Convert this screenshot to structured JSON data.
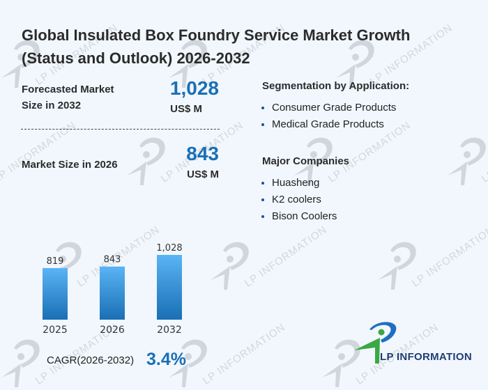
{
  "title_line1": "Global Insulated Box Foundry Service Market Growth",
  "title_line2": "(Status and Outlook) 2026-2032",
  "forecast": {
    "label_line1": "Forecasted Market",
    "label_line2": "Size in 2032",
    "value": "1,028",
    "unit": "US$ M"
  },
  "current": {
    "label": "Market Size in 2026",
    "value": "843",
    "unit": "US$ M"
  },
  "segmentation": {
    "heading": "Segmentation by Application:",
    "items": [
      "Consumer Grade Products",
      "Medical Grade Products"
    ]
  },
  "companies": {
    "heading": "Major Companies",
    "items": [
      "Huasheng",
      "K2 coolers",
      "Bison Coolers"
    ]
  },
  "cagr": {
    "label": "CAGR(2026-2032)",
    "value": "3.4%"
  },
  "logo": {
    "text": "LP INFORMATION"
  },
  "watermark_text": "LP INFORMATION",
  "colors": {
    "accent": "#1a6fb5",
    "bar_top": "#5ab4f5",
    "bar_bottom": "#1a6fb5",
    "background": "#f1f7fd"
  },
  "chart_data": {
    "type": "bar",
    "categories": [
      "2025",
      "2026",
      "2032"
    ],
    "values": [
      819,
      843,
      1028
    ],
    "labels": [
      "819",
      "843",
      "1,028"
    ],
    "title": "",
    "xlabel": "",
    "ylabel": "",
    "ylim": [
      0,
      1028
    ],
    "grid": false,
    "legend": "none"
  }
}
